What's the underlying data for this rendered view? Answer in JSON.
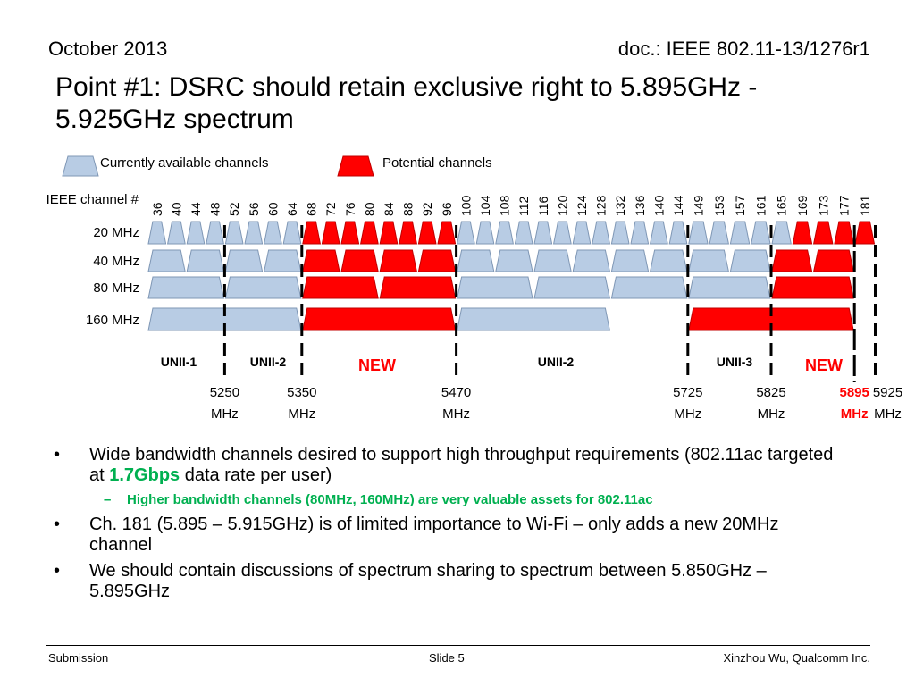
{
  "header": {
    "date": "October 2013",
    "doc_id": "doc.: IEEE 802.11-13/1276r1"
  },
  "title": {
    "line1": "Point #1: DSRC should retain exclusive right to 5.895GHz -",
    "line2": "5.925GHz spectrum"
  },
  "legend": {
    "available": "Currently available channels",
    "potential": "Potential channels"
  },
  "colors": {
    "available_fill": "#b8cce4",
    "available_stroke": "#7f97b5",
    "potential_fill": "#ff0000",
    "potential_stroke": "#c00000",
    "new_text": "#ff0000",
    "highlight": "#00b050"
  },
  "channel_header": "IEEE channel #",
  "channels": [
    "36",
    "40",
    "44",
    "48",
    "52",
    "56",
    "60",
    "64",
    "68",
    "72",
    "76",
    "80",
    "84",
    "88",
    "92",
    "96",
    "100",
    "104",
    "108",
    "112",
    "116",
    "120",
    "124",
    "128",
    "132",
    "136",
    "140",
    "144",
    "149",
    "153",
    "157",
    "161",
    "165",
    "169",
    "173",
    "177",
    "181"
  ],
  "rows": [
    {
      "label": "20 MHz",
      "channels": [
        {
          "first": 0,
          "span": 1,
          "status": "available"
        },
        {
          "first": 1,
          "span": 1,
          "status": "available"
        },
        {
          "first": 2,
          "span": 1,
          "status": "available"
        },
        {
          "first": 3,
          "span": 1,
          "status": "available"
        },
        {
          "first": 4,
          "span": 1,
          "status": "available"
        },
        {
          "first": 5,
          "span": 1,
          "status": "available"
        },
        {
          "first": 6,
          "span": 1,
          "status": "available"
        },
        {
          "first": 7,
          "span": 1,
          "status": "available"
        },
        {
          "first": 8,
          "span": 1,
          "status": "potential"
        },
        {
          "first": 9,
          "span": 1,
          "status": "potential"
        },
        {
          "first": 10,
          "span": 1,
          "status": "potential"
        },
        {
          "first": 11,
          "span": 1,
          "status": "potential"
        },
        {
          "first": 12,
          "span": 1,
          "status": "potential"
        },
        {
          "first": 13,
          "span": 1,
          "status": "potential"
        },
        {
          "first": 14,
          "span": 1,
          "status": "potential"
        },
        {
          "first": 15,
          "span": 1,
          "status": "potential"
        },
        {
          "first": 16,
          "span": 1,
          "status": "available"
        },
        {
          "first": 17,
          "span": 1,
          "status": "available"
        },
        {
          "first": 18,
          "span": 1,
          "status": "available"
        },
        {
          "first": 19,
          "span": 1,
          "status": "available"
        },
        {
          "first": 20,
          "span": 1,
          "status": "available"
        },
        {
          "first": 21,
          "span": 1,
          "status": "available"
        },
        {
          "first": 22,
          "span": 1,
          "status": "available"
        },
        {
          "first": 23,
          "span": 1,
          "status": "available"
        },
        {
          "first": 24,
          "span": 1,
          "status": "available"
        },
        {
          "first": 25,
          "span": 1,
          "status": "available"
        },
        {
          "first": 26,
          "span": 1,
          "status": "available"
        },
        {
          "first": 27,
          "span": 1,
          "status": "available"
        },
        {
          "first": 28,
          "span": 1,
          "status": "available"
        },
        {
          "first": 29,
          "span": 1,
          "status": "available"
        },
        {
          "first": 30,
          "span": 1,
          "status": "available"
        },
        {
          "first": 31,
          "span": 1,
          "status": "available"
        },
        {
          "first": 32,
          "span": 1,
          "status": "available"
        },
        {
          "first": 33,
          "span": 1,
          "status": "potential"
        },
        {
          "first": 34,
          "span": 1,
          "status": "potential"
        },
        {
          "first": 35,
          "span": 1,
          "status": "potential"
        },
        {
          "first": 36,
          "span": 1,
          "status": "potential"
        }
      ]
    },
    {
      "label": "40 MHz",
      "channels": [
        {
          "first": 0,
          "span": 2,
          "status": "available"
        },
        {
          "first": 2,
          "span": 2,
          "status": "available"
        },
        {
          "first": 4,
          "span": 2,
          "status": "available"
        },
        {
          "first": 6,
          "span": 2,
          "status": "available"
        },
        {
          "first": 8,
          "span": 2,
          "status": "potential"
        },
        {
          "first": 10,
          "span": 2,
          "status": "potential"
        },
        {
          "first": 12,
          "span": 2,
          "status": "potential"
        },
        {
          "first": 14,
          "span": 2,
          "status": "potential"
        },
        {
          "first": 16,
          "span": 2,
          "status": "available"
        },
        {
          "first": 18,
          "span": 2,
          "status": "available"
        },
        {
          "first": 20,
          "span": 2,
          "status": "available"
        },
        {
          "first": 22,
          "span": 2,
          "status": "available"
        },
        {
          "first": 24,
          "span": 2,
          "status": "available"
        },
        {
          "first": 26,
          "span": 2,
          "status": "available"
        },
        {
          "first": 28,
          "span": 2,
          "status": "available"
        },
        {
          "first": 30,
          "span": 2,
          "status": "available"
        },
        {
          "first": 32,
          "span": 2,
          "status": "potential"
        },
        {
          "first": 34,
          "span": 2,
          "status": "potential"
        }
      ]
    },
    {
      "label": "80 MHz",
      "channels": [
        {
          "first": 0,
          "span": 4,
          "status": "available"
        },
        {
          "first": 4,
          "span": 4,
          "status": "available"
        },
        {
          "first": 8,
          "span": 4,
          "status": "potential"
        },
        {
          "first": 12,
          "span": 4,
          "status": "potential"
        },
        {
          "first": 16,
          "span": 4,
          "status": "available"
        },
        {
          "first": 20,
          "span": 4,
          "status": "available"
        },
        {
          "first": 24,
          "span": 4,
          "status": "available"
        },
        {
          "first": 28,
          "span": 4,
          "status": "available"
        },
        {
          "first": 32,
          "span": 4,
          "status": "potential"
        }
      ]
    },
    {
      "label": "160 MHz",
      "channels": [
        {
          "first": 0,
          "span": 8,
          "status": "available"
        },
        {
          "first": 8,
          "span": 8,
          "status": "potential"
        },
        {
          "first": 16,
          "span": 8,
          "status": "available"
        },
        {
          "first": 28,
          "span": 8,
          "status": "potential"
        }
      ]
    }
  ],
  "bands": [
    {
      "label": "UNII-1",
      "new": false
    },
    {
      "label": "UNII-2",
      "new": false
    },
    {
      "label": "NEW",
      "new": true
    },
    {
      "label": "UNII-2",
      "new": false
    },
    {
      "label": "UNII-3",
      "new": false
    },
    {
      "label": "NEW",
      "new": true
    }
  ],
  "frequency_markers": [
    {
      "value": "5250",
      "unit": "MHz",
      "highlight": false
    },
    {
      "value": "5350",
      "unit": "MHz",
      "highlight": false
    },
    {
      "value": "5470",
      "unit": "MHz",
      "highlight": false
    },
    {
      "value": "5725",
      "unit": "MHz",
      "highlight": false
    },
    {
      "value": "5825",
      "unit": "MHz",
      "highlight": false
    },
    {
      "value": "5895",
      "unit": "MHz",
      "highlight": true
    },
    {
      "value": "5925",
      "unit": "MHz",
      "highlight": false
    }
  ],
  "bullets": [
    {
      "level": 1,
      "parts": [
        {
          "text": "Wide bandwidth channels desired to support high throughput requirements (802.11ac targeted at ",
          "strong": false
        },
        {
          "text": "1.7Gbps",
          "strong": true
        },
        {
          "text": " data rate per user)",
          "strong": false
        }
      ]
    },
    {
      "level": 2,
      "parts": [
        {
          "text": "Higher bandwidth channels (80MHz, 160MHz) are very valuable assets for 802.11ac",
          "strong": true
        }
      ]
    },
    {
      "level": 1,
      "parts": [
        {
          "text": "Ch. 181 (5.895 – 5.915GHz) is of limited importance to Wi-Fi – only adds a new 20MHz channel",
          "strong": false
        }
      ]
    },
    {
      "level": 1,
      "parts": [
        {
          "text": "We should contain discussions of spectrum sharing to spectrum between 5.850GHz – 5.895GHz",
          "strong": false
        }
      ]
    }
  ],
  "footer": {
    "left": "Submission",
    "center": "Slide 5",
    "right": "Xinzhou Wu, Qualcomm Inc."
  }
}
